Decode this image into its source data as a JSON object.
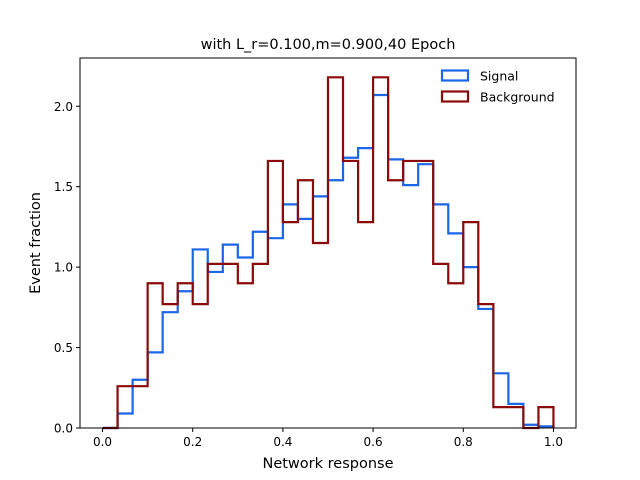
{
  "chart_data": {
    "type": "histogram",
    "title": "with L_r=0.100,m=0.900,40 Epoch",
    "xlabel": "Network response",
    "ylabel": "Event fraction",
    "xlim": [
      -0.05,
      1.05
    ],
    "ylim": [
      0,
      2.3
    ],
    "xticks": [
      "0.0",
      "0.2",
      "0.4",
      "0.6",
      "0.8",
      "1.0"
    ],
    "yticks": [
      "0.0",
      "0.5",
      "1.0",
      "1.5",
      "2.0"
    ],
    "legend_position": "top-right",
    "bin_edges": [
      0.0,
      0.0333,
      0.0667,
      0.1,
      0.1333,
      0.1667,
      0.2,
      0.2333,
      0.2667,
      0.3,
      0.3333,
      0.3667,
      0.4,
      0.4333,
      0.4667,
      0.5,
      0.5333,
      0.5667,
      0.6,
      0.6333,
      0.6667,
      0.7,
      0.7333,
      0.7667,
      0.8,
      0.8333,
      0.8667,
      0.9,
      0.9333,
      0.9667,
      1.0
    ],
    "series": [
      {
        "name": "Signal",
        "color": "#1a66e6",
        "values": [
          0.0,
          0.09,
          0.3,
          0.47,
          0.72,
          0.85,
          1.11,
          0.97,
          1.14,
          1.06,
          1.22,
          1.18,
          1.39,
          1.3,
          1.44,
          1.54,
          1.68,
          1.74,
          2.07,
          1.67,
          1.51,
          1.64,
          1.39,
          1.21,
          1.0,
          0.74,
          0.34,
          0.15,
          0.02,
          0.01
        ]
      },
      {
        "name": "Background",
        "color": "#8b0a0a",
        "values": [
          0.0,
          0.26,
          0.26,
          0.9,
          0.77,
          0.9,
          0.77,
          1.02,
          1.02,
          0.9,
          1.02,
          1.66,
          1.28,
          1.54,
          1.15,
          2.18,
          1.66,
          1.28,
          2.18,
          1.54,
          1.66,
          1.66,
          1.02,
          0.9,
          1.28,
          0.77,
          0.13,
          0.13,
          0.0,
          0.13
        ]
      }
    ]
  }
}
